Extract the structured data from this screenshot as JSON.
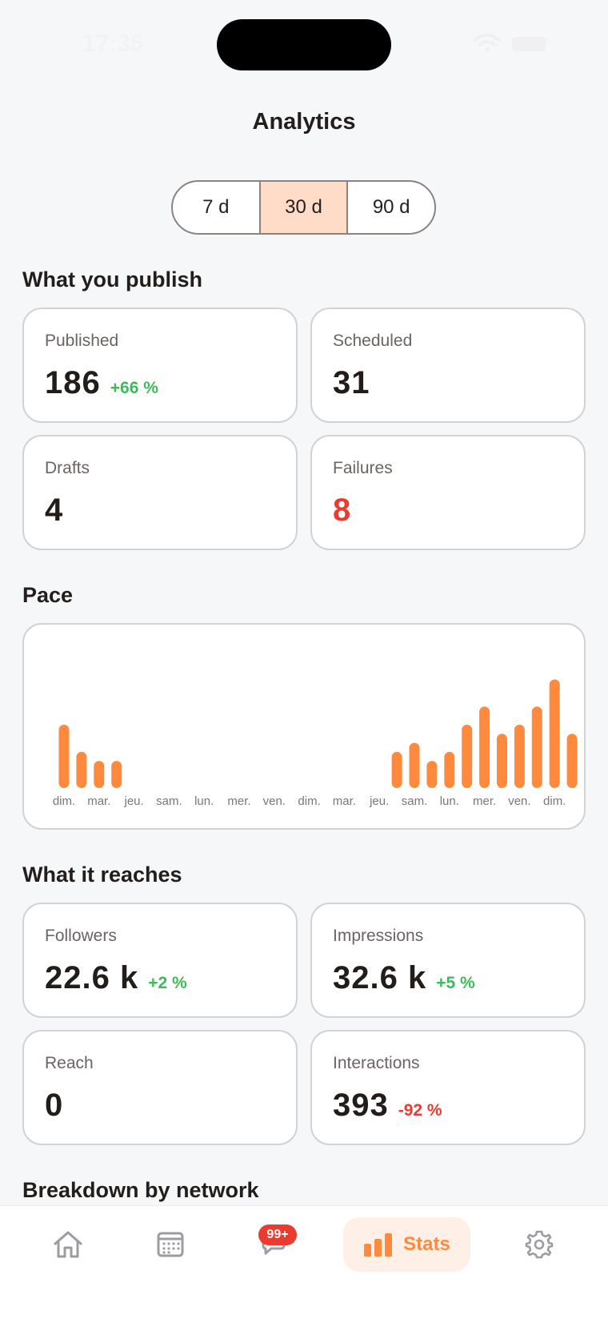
{
  "status_bar": {
    "time": "17:35"
  },
  "header": {
    "title": "Analytics"
  },
  "period": {
    "options": [
      "7 d",
      "30 d",
      "90 d"
    ],
    "selected": "30 d"
  },
  "publish": {
    "title": "What you publish",
    "cards": [
      {
        "label": "Published",
        "value": "186",
        "delta": "+66 %"
      },
      {
        "label": "Scheduled",
        "value": "31",
        "delta": ""
      },
      {
        "label": "Drafts",
        "value": "4",
        "delta": ""
      },
      {
        "label": "Failures",
        "value": "8",
        "delta": ""
      }
    ]
  },
  "pace": {
    "title": "Pace"
  },
  "chart_data": {
    "type": "bar",
    "categories": [
      "dim.",
      "",
      "mar.",
      "",
      "jeu.",
      "",
      "sam.",
      "",
      "lun.",
      "",
      "mer.",
      "",
      "ven.",
      "",
      "dim.",
      "",
      "mar.",
      "",
      "jeu.",
      "",
      "sam.",
      "",
      "lun.",
      "",
      "mer.",
      "",
      "ven.",
      "",
      "dim.",
      ""
    ],
    "values": [
      7,
      4,
      3,
      3,
      0,
      0,
      0,
      0,
      0,
      0,
      0,
      0,
      0,
      0,
      0,
      0,
      0,
      0,
      0,
      4,
      5,
      3,
      4,
      7,
      9,
      6,
      7,
      9,
      12,
      6
    ],
    "color": "#ff8a3d",
    "grid": false
  },
  "reach": {
    "title": "What it reaches",
    "cards": [
      {
        "label": "Followers",
        "value": "22.6 k",
        "delta": "+2 %"
      },
      {
        "label": "Impressions",
        "value": "32.6 k",
        "delta": "+5 %"
      },
      {
        "label": "Reach",
        "value": "0",
        "delta": ""
      },
      {
        "label": "Interactions",
        "value": "393",
        "delta": "-92 %"
      }
    ]
  },
  "breakdown": {
    "title": "Breakdown by network"
  },
  "nav": {
    "items": [
      {
        "icon": "home-icon"
      },
      {
        "icon": "calendar-icon"
      },
      {
        "icon": "chat-icon",
        "badge": "99+"
      },
      {
        "icon": "stats-icon",
        "label": "Stats"
      },
      {
        "icon": "gear-icon"
      }
    ]
  },
  "colors": {
    "accent": "#ff8a3d",
    "positive": "#3dbb5a",
    "negative": "#ea3b30",
    "selected_segment": "#ffdcc7"
  }
}
